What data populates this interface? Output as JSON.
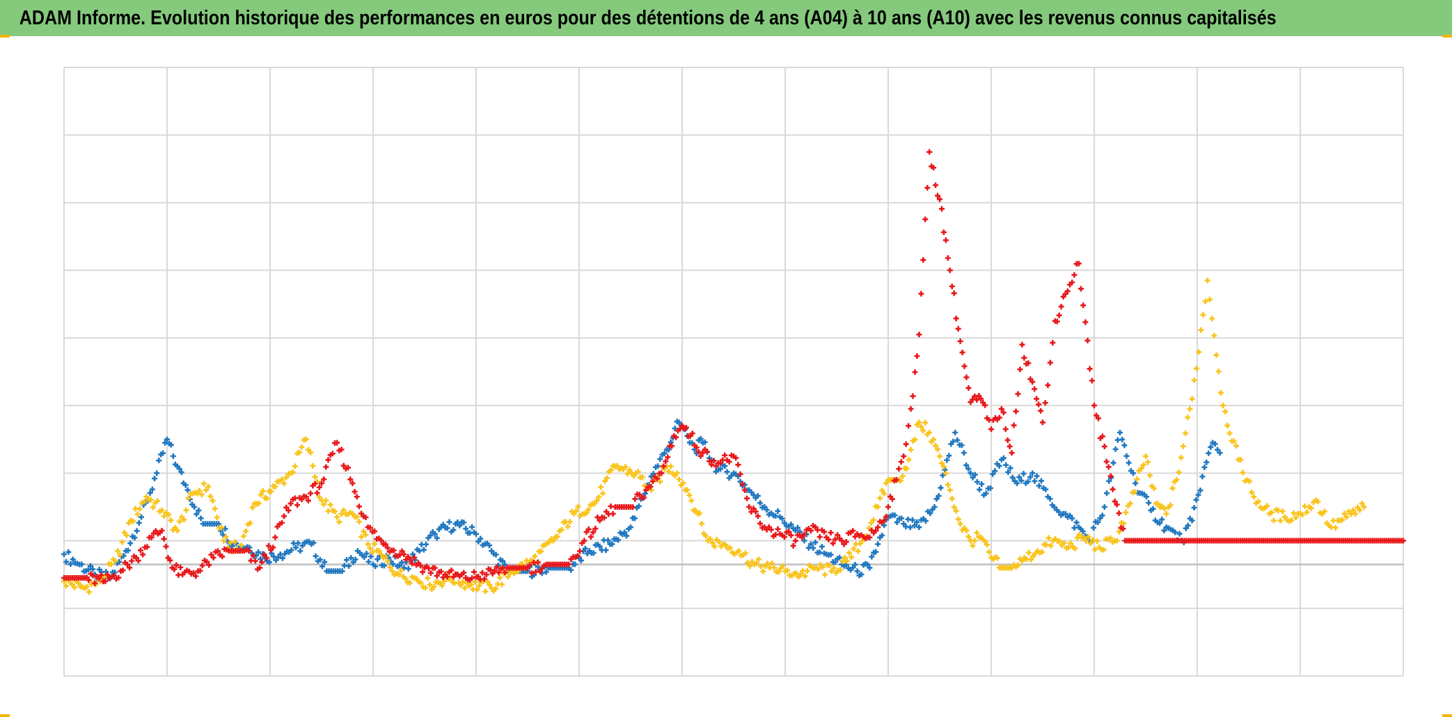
{
  "chart_data": {
    "type": "scatter",
    "title": "ADAM Informe. Evolution historique des performances en euros pour des détentions de 4 ans (A04) à 10 ans (A10) avec les revenus connus capitalisés",
    "xlabel": "",
    "ylabel": "",
    "xlim": [
      0,
      13
    ],
    "ylim": [
      -1.65,
      7.35
    ],
    "grid": true,
    "zero_line": true,
    "marker": "plus",
    "series": [
      {
        "color": "#1f77c0",
        "x": [
          0,
          0.15,
          0.3,
          0.45,
          0.6,
          0.75,
          0.9,
          1.0,
          1.1,
          1.2,
          1.35,
          1.5,
          1.65,
          1.8,
          1.95,
          2.1,
          2.25,
          2.4,
          2.55,
          2.7,
          2.85,
          3.0,
          3.15,
          3.3,
          3.45,
          3.6,
          3.8,
          4.0,
          4.15,
          4.3,
          4.5,
          4.7,
          4.9,
          5.1,
          5.3,
          5.5,
          5.7,
          5.85,
          5.97,
          6.05,
          6.12,
          6.2,
          6.35,
          6.5,
          6.65,
          6.8,
          6.95,
          7.1,
          7.25,
          7.4,
          7.55,
          7.7,
          7.82,
          7.9,
          8.0,
          8.15,
          8.3,
          8.45,
          8.55,
          8.65,
          8.8,
          8.95,
          9.1,
          9.25,
          9.4,
          9.55,
          9.7,
          9.85,
          9.95,
          10.1,
          10.25,
          10.4,
          10.55,
          10.7,
          10.85,
          10.95,
          11.05,
          11.15,
          11.22
        ],
        "y": [
          0.15,
          0.0,
          -0.15,
          -0.2,
          0.2,
          0.7,
          1.35,
          1.85,
          1.45,
          1.1,
          0.6,
          0.6,
          0.3,
          0.25,
          0.1,
          0.15,
          0.25,
          0.3,
          -0.1,
          -0.1,
          0.2,
          0.0,
          0.1,
          -0.05,
          0.2,
          0.45,
          0.6,
          0.45,
          0.2,
          -0.1,
          -0.1,
          -0.05,
          -0.05,
          0.2,
          0.3,
          0.55,
          1.3,
          1.7,
          2.1,
          1.9,
          1.7,
          1.8,
          1.4,
          1.35,
          1.1,
          0.85,
          0.7,
          0.5,
          0.3,
          0.15,
          0.0,
          -0.1,
          -0.05,
          0.3,
          0.7,
          0.6,
          0.55,
          0.85,
          1.4,
          1.95,
          1.35,
          1.05,
          1.55,
          1.2,
          1.35,
          1.0,
          0.75,
          0.55,
          0.35,
          0.85,
          1.95,
          1.2,
          0.8,
          0.55,
          0.35,
          0.65,
          1.3,
          1.8,
          1.65
        ]
      },
      {
        "color": "#f9c31a",
        "x": [
          0,
          0.2,
          0.35,
          0.5,
          0.65,
          0.8,
          0.95,
          1.1,
          1.25,
          1.4,
          1.55,
          1.7,
          1.85,
          2.05,
          2.2,
          2.35,
          2.5,
          2.65,
          2.8,
          2.95,
          3.1,
          3.25,
          3.4,
          3.55,
          3.75,
          3.95,
          4.15,
          4.35,
          4.55,
          4.75,
          4.95,
          5.15,
          5.35,
          5.55,
          5.7,
          5.85,
          5.95,
          6.05,
          6.15,
          6.25,
          6.4,
          6.55,
          6.7,
          6.85,
          7.0,
          7.15,
          7.3,
          7.45,
          7.6,
          7.75,
          7.9,
          8.0,
          8.1,
          8.2,
          8.3,
          8.4,
          8.5,
          8.6,
          8.7,
          8.8,
          8.9,
          9.0,
          9.1,
          9.2,
          9.3,
          9.45,
          9.6,
          9.75,
          9.9,
          10.05,
          10.2,
          10.35,
          10.5,
          10.6,
          10.7,
          10.8,
          10.95,
          11.1,
          11.25,
          11.4,
          11.55,
          11.7,
          11.85,
          12.0,
          12.15,
          12.3,
          12.45,
          12.62
        ],
        "y": [
          -0.25,
          -0.35,
          -0.25,
          0.05,
          0.65,
          1.0,
          0.8,
          0.5,
          1.05,
          1.15,
          0.35,
          0.2,
          0.9,
          1.15,
          1.35,
          1.85,
          0.95,
          0.7,
          0.75,
          0.3,
          0.1,
          -0.15,
          -0.2,
          -0.3,
          -0.2,
          -0.3,
          -0.35,
          -0.1,
          0.05,
          0.35,
          0.75,
          0.9,
          1.45,
          1.35,
          1.1,
          1.45,
          1.35,
          1.1,
          0.75,
          0.35,
          0.3,
          0.2,
          0.0,
          -0.05,
          -0.1,
          -0.15,
          -0.05,
          -0.1,
          0.05,
          0.35,
          0.85,
          1.25,
          1.25,
          1.55,
          2.1,
          1.95,
          1.6,
          1.1,
          0.6,
          0.35,
          0.4,
          0.1,
          -0.05,
          -0.05,
          0.05,
          0.2,
          0.35,
          0.25,
          0.4,
          0.25,
          0.35,
          0.9,
          1.6,
          0.9,
          0.75,
          1.25,
          2.45,
          4.2,
          2.35,
          1.55,
          1.0,
          0.75,
          0.7,
          0.75,
          0.95,
          0.55,
          0.7,
          0.85
        ]
      },
      {
        "color": "#e8171a",
        "x": [
          0,
          0.2,
          0.4,
          0.55,
          0.7,
          0.85,
          0.95,
          1.05,
          1.15,
          1.3,
          1.45,
          1.6,
          1.75,
          1.9,
          2.05,
          2.2,
          2.35,
          2.5,
          2.65,
          2.8,
          2.95,
          3.1,
          3.3,
          3.5,
          3.7,
          3.9,
          4.1,
          4.3,
          4.5,
          4.7,
          4.9,
          5.05,
          5.2,
          5.35,
          5.5,
          5.65,
          5.8,
          5.92,
          6.0,
          6.08,
          6.2,
          6.35,
          6.5,
          6.65,
          6.8,
          6.95,
          7.1,
          7.25,
          7.4,
          7.55,
          7.7,
          7.8,
          7.9,
          8.0,
          8.08,
          8.15,
          8.22,
          8.3,
          8.4,
          8.5,
          8.6,
          8.7,
          8.8,
          8.9,
          9.0,
          9.1,
          9.2,
          9.3,
          9.4,
          9.5,
          9.55,
          9.62,
          9.72,
          9.85,
          10.0,
          10.3,
          10.6,
          10.9,
          11.2,
          11.5,
          11.8,
          12.1,
          12.4,
          12.7,
          13.0
        ],
        "y": [
          -0.2,
          -0.2,
          -0.25,
          -0.1,
          0.1,
          0.4,
          0.5,
          -0.05,
          -0.15,
          -0.1,
          0.1,
          0.2,
          0.2,
          -0.05,
          0.4,
          0.9,
          1.0,
          1.2,
          1.8,
          1.2,
          0.55,
          0.3,
          0.15,
          -0.05,
          -0.15,
          -0.2,
          -0.15,
          -0.05,
          -0.05,
          0.0,
          0.0,
          0.35,
          0.65,
          0.85,
          0.85,
          1.1,
          1.35,
          1.9,
          2.05,
          1.9,
          1.65,
          1.5,
          1.6,
          0.85,
          0.55,
          0.45,
          0.35,
          0.5,
          0.4,
          0.35,
          0.45,
          0.4,
          0.55,
          0.85,
          1.25,
          1.6,
          2.3,
          3.4,
          6.1,
          5.4,
          4.35,
          3.3,
          2.4,
          2.45,
          2.0,
          2.3,
          1.65,
          3.25,
          2.7,
          2.1,
          2.65,
          3.6,
          4.0,
          4.45,
          2.35,
          0.35,
          0.35,
          0.35,
          0.35,
          0.35,
          0.35,
          0.35,
          0.35,
          0.35,
          0.35
        ]
      }
    ]
  }
}
